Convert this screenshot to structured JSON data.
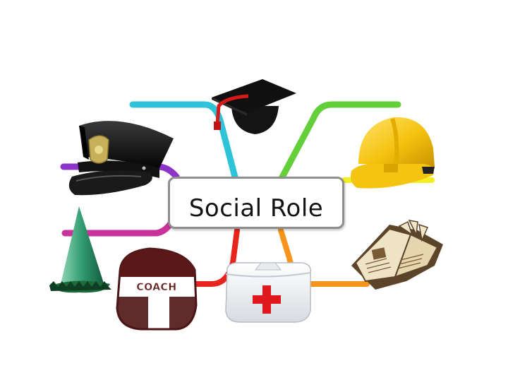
{
  "center": {
    "label": "Social Role"
  },
  "coach_cap": {
    "text": "COACH"
  },
  "colors": {
    "cyan": "#2fc3da",
    "green": "#62cf3b",
    "purple": "#8e33c7",
    "yellow": "#f2ee1f",
    "magenta": "#c8329a",
    "orange": "#f7941d",
    "red": "#e8251d",
    "box_border": "#8e8e8e"
  },
  "items": [
    {
      "name": "graduation-cap-icon"
    },
    {
      "name": "police-cap-icon"
    },
    {
      "name": "hard-hat-icon"
    },
    {
      "name": "party-hat-icon"
    },
    {
      "name": "coach-cap-icon"
    },
    {
      "name": "nurse-cap-icon"
    },
    {
      "name": "open-book-icon"
    }
  ]
}
